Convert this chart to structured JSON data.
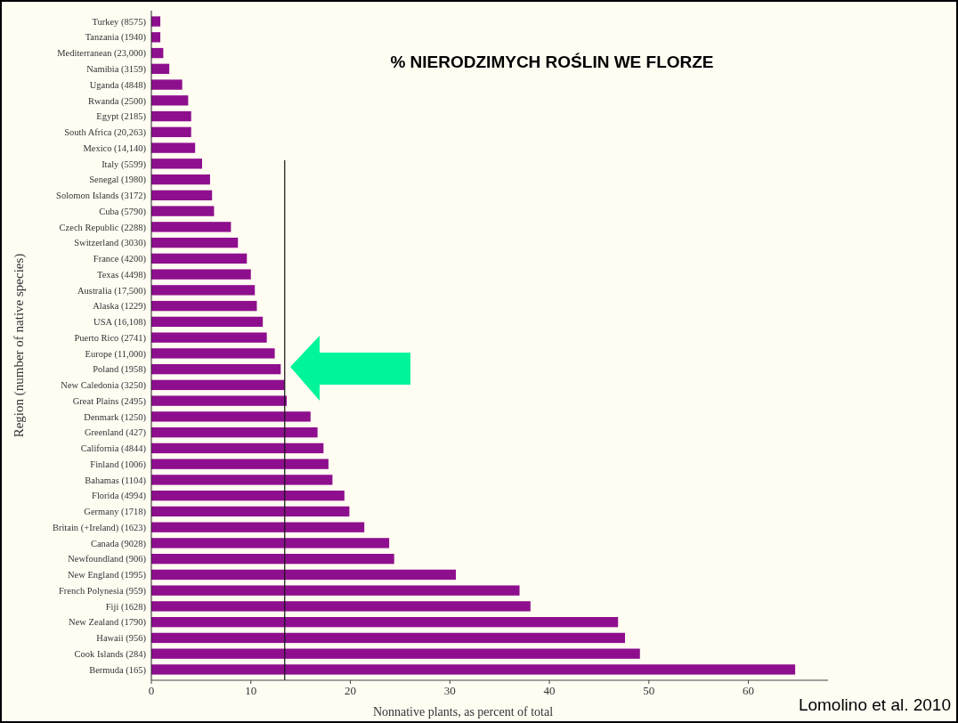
{
  "chart_data": {
    "type": "bar",
    "orientation": "horizontal",
    "title": "% NIERODZIMYCH ROŚLIN WE FLORZE",
    "xlabel": "Nonnative plants, as percent of total",
    "ylabel": "Region (number of native species)",
    "annotations": [
      "Lomolino et al. 2010"
    ],
    "categories": [
      "Turkey (8575)",
      "Tanzania (1940)",
      "Mediterranean (23,000)",
      "Namibia (3159)",
      "Uganda (4848)",
      "Rwanda (2500)",
      "Egypt (2185)",
      "South Africa (20,263)",
      "Mexico (14,140)",
      "Italy (5599)",
      "Senegal (1980)",
      "Solomon Islands (3172)",
      "Cuba (5790)",
      "Czech Republic (2288)",
      "Switzerland (3030)",
      "France (4200)",
      "Texas (4498)",
      "Australia (17,500)",
      "Alaska (1229)",
      "USA (16,108)",
      "Puerto Rico (2741)",
      "Europe (11,000)",
      "Poland (1958)",
      "New Caledonia (3250)",
      "Great Plains (2495)",
      "Denmark (1250)",
      "Greenland (427)",
      "California (4844)",
      "Finland (1006)",
      "Bahamas (1104)",
      "Florida (4994)",
      "Germany (1718)",
      "Britain (+Ireland) (1623)",
      "Canada (9028)",
      "Newfoundland (906)",
      "New England (1995)",
      "French Polynesia (959)",
      "Fiji (1628)",
      "New Zealand (1790)",
      "Hawaii (956)",
      "Cook Islands (284)",
      "Bermuda (165)"
    ],
    "values": [
      0.9,
      0.9,
      1.2,
      1.8,
      3.1,
      3.7,
      4.0,
      4.0,
      4.4,
      5.1,
      5.9,
      6.1,
      6.3,
      8.0,
      8.7,
      9.6,
      10.0,
      10.4,
      10.6,
      11.2,
      11.6,
      12.4,
      13.0,
      13.4,
      13.6,
      16.0,
      16.7,
      17.3,
      17.8,
      18.2,
      19.4,
      19.9,
      21.4,
      23.9,
      24.4,
      30.6,
      37.0,
      38.1,
      46.9,
      47.6,
      49.1,
      64.7
    ],
    "color": "#8e0f8e",
    "xlim": [
      0,
      68
    ],
    "xticks": [
      0,
      10,
      20,
      30,
      40,
      50,
      60
    ],
    "ref_lines": [
      {
        "axis": "x",
        "value": 13.4,
        "color": "#111111"
      }
    ]
  }
}
